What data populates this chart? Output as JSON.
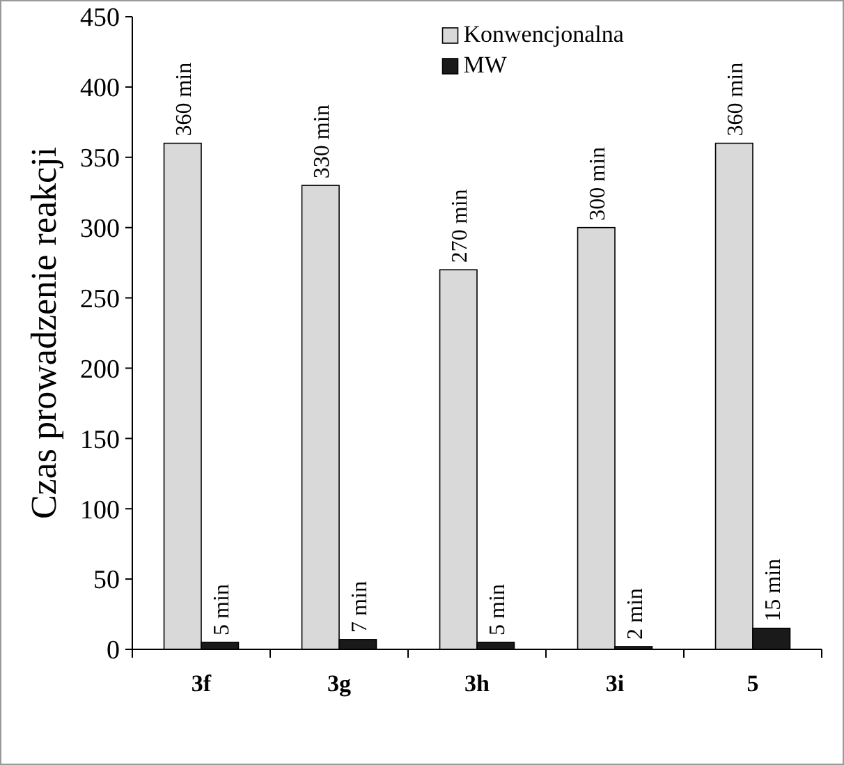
{
  "chart_data": {
    "type": "bar",
    "ylabel": "Czas prowadzenie reakcji",
    "categories": [
      "3f",
      "3g",
      "3h",
      "3i",
      "5"
    ],
    "series": [
      {
        "name": "Konwencjonalna",
        "color": "#d9d9d9",
        "values": [
          360,
          330,
          270,
          300,
          360
        ],
        "value_labels": [
          "360 min",
          "330 min",
          "270 min",
          "300 min",
          "360 min"
        ]
      },
      {
        "name": "MW",
        "color": "#1a1a1a",
        "values": [
          5,
          7,
          5,
          2,
          15
        ],
        "value_labels": [
          "5 min",
          "7 min",
          "5 min",
          "2 min",
          "15 min"
        ]
      }
    ],
    "ylim": [
      0,
      450
    ],
    "yticks": [
      0,
      50,
      100,
      150,
      200,
      250,
      300,
      350,
      400,
      450
    ],
    "grid": false,
    "legend": "top right"
  }
}
